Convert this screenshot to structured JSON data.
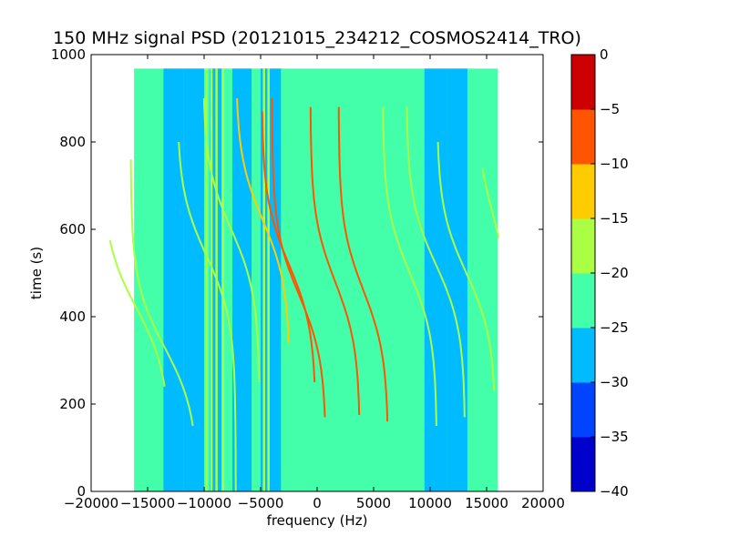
{
  "chart_data": {
    "type": "heatmap",
    "title": "150 MHz signal PSD (20121015_234212_COSMOS2414_TRO)",
    "xlabel": "frequency (Hz)",
    "ylabel": "time (s)",
    "xlim": [
      -20000,
      20000
    ],
    "ylim": [
      0,
      1000
    ],
    "x_ticks": [
      -20000,
      -15000,
      -10000,
      -5000,
      0,
      5000,
      10000,
      15000,
      20000
    ],
    "x_tick_labels": [
      "−20000",
      "−15000",
      "−10000",
      "−5000",
      "0",
      "5000",
      "10000",
      "15000",
      "20000"
    ],
    "y_ticks": [
      0,
      200,
      400,
      600,
      800,
      1000
    ],
    "y_tick_labels": [
      "0",
      "200",
      "400",
      "600",
      "800",
      "1000"
    ],
    "data_extent": {
      "x": [
        -16200,
        16000
      ],
      "y": [
        0,
        968
      ]
    },
    "background_level": -22.5,
    "colorbar": {
      "levels": [
        -40,
        -35,
        -30,
        -25,
        -20,
        -15,
        -10,
        -5,
        0
      ],
      "tick_labels": [
        "−40",
        "−35",
        "−30",
        "−25",
        "−20",
        "−15",
        "−10",
        "−5",
        "0"
      ],
      "colors": [
        "#0000cc",
        "#0044ff",
        "#00bbff",
        "#44ffaa",
        "#aaff44",
        "#ffcc00",
        "#ff5500",
        "#cc0000"
      ]
    },
    "low_bands": [
      {
        "x": [
          -13600,
          -11800
        ],
        "level": -27.5
      },
      {
        "x": [
          -11800,
          -10000
        ],
        "level": -27.5
      },
      {
        "x": [
          -9500,
          -8300
        ],
        "level": -27.5
      },
      {
        "x": [
          -7500,
          -5800
        ],
        "level": -27.5
      },
      {
        "x": [
          -5000,
          -3200
        ],
        "level": -27.5
      },
      {
        "x": [
          9500,
          11500
        ],
        "level": -27.5
      },
      {
        "x": [
          11500,
          13300
        ],
        "level": -27.5
      }
    ],
    "vertical_lines": [
      {
        "x": -9800,
        "level": -17.5
      },
      {
        "x": -9350,
        "level": -17.5
      },
      {
        "x": -8900,
        "level": -17.5
      },
      {
        "x": -8350,
        "level": -17.5
      },
      {
        "x": -4700,
        "level": -17.5
      },
      {
        "x": -4300,
        "level": -17.5
      }
    ],
    "traces": [
      {
        "f_center": -16000,
        "t_center": 420,
        "amplitude": 3000,
        "t_start": 240,
        "t_end": 575,
        "level": -17.5
      },
      {
        "f_center": -13500,
        "t_center": 330,
        "amplitude": 3000,
        "t_start": 150,
        "t_end": 760,
        "level": -17.5
      },
      {
        "f_center": -9800,
        "t_center": 540,
        "amplitude": 2600,
        "t_start": 0,
        "t_end": 800,
        "level": -17.5
      },
      {
        "f_center": -7600,
        "t_center": 600,
        "amplitude": 2500,
        "t_start": 250,
        "t_end": 900,
        "level": -17.5
      },
      {
        "f_center": -4800,
        "t_center": 620,
        "amplitude": 2400,
        "t_start": 340,
        "t_end": 900,
        "level": -12.5
      },
      {
        "f_center": -2500,
        "t_center": 520,
        "amplitude": 2400,
        "t_start": 250,
        "t_end": 870,
        "level": -7.5
      },
      {
        "f_center": -1600,
        "t_center": 450,
        "amplitude": 2400,
        "t_start": 170,
        "t_end": 900,
        "level": -7.5
      },
      {
        "f_center": 1600,
        "t_center": 480,
        "amplitude": 2200,
        "t_start": 175,
        "t_end": 880,
        "level": -7.5
      },
      {
        "f_center": 4100,
        "t_center": 460,
        "amplitude": 2200,
        "t_start": 160,
        "t_end": 880,
        "level": -7.5
      },
      {
        "f_center": 8200,
        "t_center": 500,
        "amplitude": 2400,
        "t_start": 150,
        "t_end": 880,
        "level": -17.5
      },
      {
        "f_center": 10500,
        "t_center": 520,
        "amplitude": 2600,
        "t_start": 170,
        "t_end": 880,
        "level": -17.5
      },
      {
        "f_center": 13200,
        "t_center": 500,
        "amplitude": 2600,
        "t_start": 230,
        "t_end": 800,
        "level": -17.5
      },
      {
        "f_center": 15500,
        "t_center": 640,
        "amplitude": 1500,
        "t_start": 580,
        "t_end": 740,
        "level": -17.5
      }
    ]
  }
}
